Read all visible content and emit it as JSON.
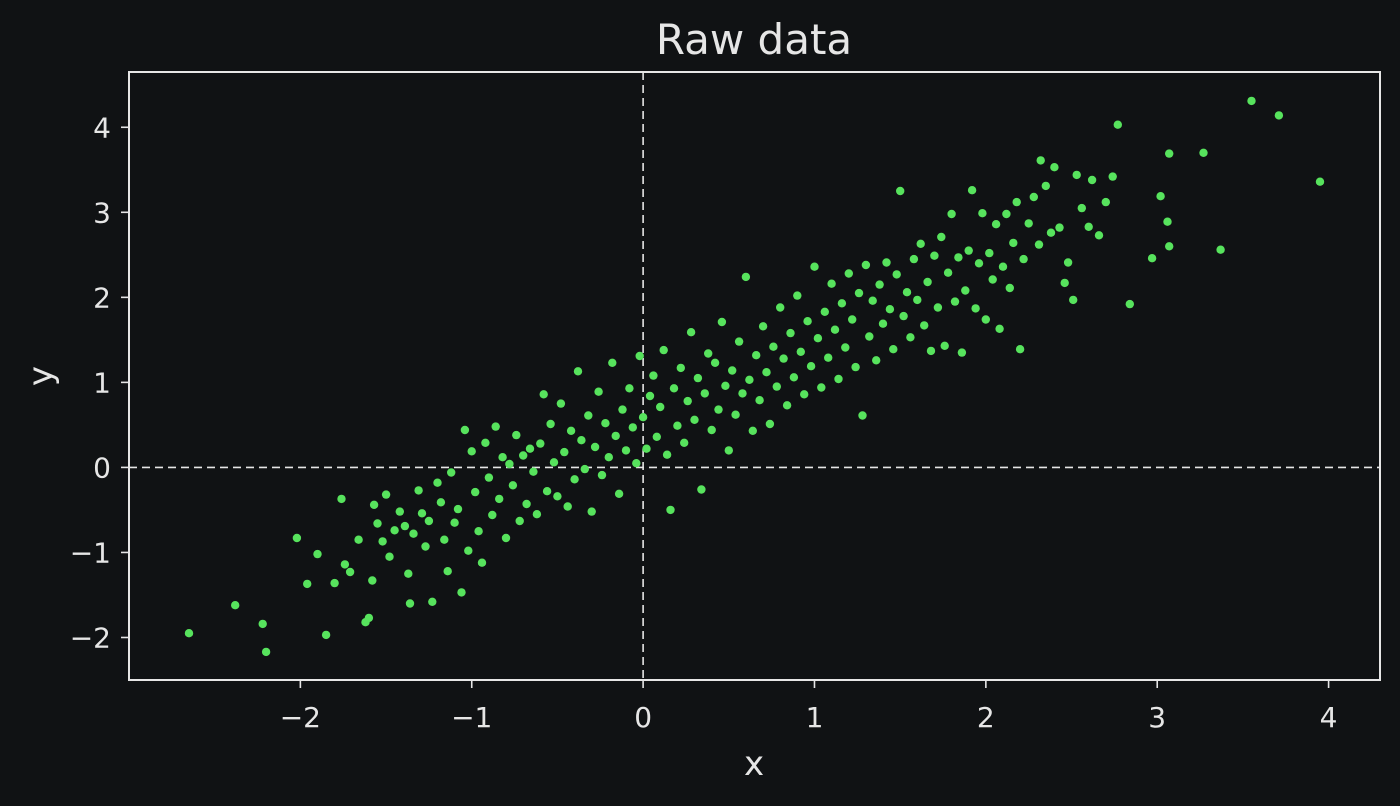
{
  "chart_data": {
    "type": "scatter",
    "title": "Raw data",
    "xlabel": "x",
    "ylabel": "y",
    "xlim": [
      -3.0,
      4.3
    ],
    "ylim": [
      -2.5,
      4.65
    ],
    "xticks": [
      -2,
      -1,
      0,
      1,
      2,
      3,
      4
    ],
    "yticks": [
      -2,
      -1,
      0,
      1,
      2,
      3,
      4
    ],
    "xtick_labels": [
      "−2",
      "−1",
      "0",
      "1",
      "2",
      "3",
      "4"
    ],
    "ytick_labels": [
      "−2",
      "−1",
      "0",
      "1",
      "2",
      "3",
      "4"
    ],
    "reference_lines": {
      "x": 0,
      "y": 0,
      "style": "dashed"
    },
    "grid": false,
    "point_color": "#57e35d",
    "background": "#101214",
    "foreground": "#e6e6e6",
    "points": [
      [
        -2.65,
        -1.95
      ],
      [
        -2.38,
        -1.62
      ],
      [
        -2.22,
        -1.84
      ],
      [
        -2.2,
        -2.17
      ],
      [
        -2.02,
        -0.83
      ],
      [
        -1.96,
        -1.37
      ],
      [
        -1.9,
        -1.02
      ],
      [
        -1.85,
        -1.97
      ],
      [
        -1.8,
        -1.36
      ],
      [
        -1.76,
        -0.37
      ],
      [
        -1.74,
        -1.14
      ],
      [
        -1.71,
        -1.23
      ],
      [
        -1.66,
        -0.85
      ],
      [
        -1.62,
        -1.82
      ],
      [
        -1.6,
        -1.77
      ],
      [
        -1.58,
        -1.33
      ],
      [
        -1.57,
        -0.44
      ],
      [
        -1.55,
        -0.66
      ],
      [
        -1.52,
        -0.87
      ],
      [
        -1.5,
        -0.32
      ],
      [
        -1.48,
        -1.05
      ],
      [
        -1.45,
        -0.74
      ],
      [
        -1.42,
        -0.52
      ],
      [
        -1.39,
        -0.69
      ],
      [
        -1.37,
        -1.25
      ],
      [
        -1.36,
        -1.6
      ],
      [
        -1.34,
        -0.78
      ],
      [
        -1.31,
        -0.27
      ],
      [
        -1.29,
        -0.54
      ],
      [
        -1.27,
        -0.93
      ],
      [
        -1.25,
        -0.63
      ],
      [
        -1.23,
        -1.58
      ],
      [
        -1.2,
        -0.18
      ],
      [
        -1.18,
        -0.41
      ],
      [
        -1.16,
        -0.85
      ],
      [
        -1.14,
        -1.22
      ],
      [
        -1.12,
        -0.06
      ],
      [
        -1.1,
        -0.65
      ],
      [
        -1.08,
        -0.49
      ],
      [
        -1.06,
        -1.47
      ],
      [
        -1.04,
        0.44
      ],
      [
        -1.02,
        -0.98
      ],
      [
        -1.0,
        0.19
      ],
      [
        -0.98,
        -0.29
      ],
      [
        -0.96,
        -0.75
      ],
      [
        -0.94,
        -1.12
      ],
      [
        -0.92,
        0.29
      ],
      [
        -0.9,
        -0.12
      ],
      [
        -0.88,
        -0.56
      ],
      [
        -0.86,
        0.48
      ],
      [
        -0.84,
        -0.37
      ],
      [
        -0.82,
        0.12
      ],
      [
        -0.8,
        -0.83
      ],
      [
        -0.78,
        0.04
      ],
      [
        -0.76,
        -0.21
      ],
      [
        -0.74,
        0.38
      ],
      [
        -0.72,
        -0.63
      ],
      [
        -0.7,
        0.14
      ],
      [
        -0.68,
        -0.43
      ],
      [
        -0.66,
        0.22
      ],
      [
        -0.64,
        -0.05
      ],
      [
        -0.62,
        -0.55
      ],
      [
        -0.6,
        0.28
      ],
      [
        -0.58,
        0.86
      ],
      [
        -0.56,
        -0.28
      ],
      [
        -0.54,
        0.51
      ],
      [
        -0.52,
        0.06
      ],
      [
        -0.5,
        -0.34
      ],
      [
        -0.48,
        0.75
      ],
      [
        -0.46,
        0.18
      ],
      [
        -0.44,
        -0.46
      ],
      [
        -0.42,
        0.43
      ],
      [
        -0.4,
        -0.14
      ],
      [
        -0.38,
        1.13
      ],
      [
        -0.36,
        0.32
      ],
      [
        -0.34,
        -0.02
      ],
      [
        -0.32,
        0.61
      ],
      [
        -0.3,
        -0.52
      ],
      [
        -0.28,
        0.24
      ],
      [
        -0.26,
        0.89
      ],
      [
        -0.24,
        -0.09
      ],
      [
        -0.22,
        0.52
      ],
      [
        -0.2,
        0.12
      ],
      [
        -0.18,
        1.23
      ],
      [
        -0.16,
        0.37
      ],
      [
        -0.14,
        -0.31
      ],
      [
        -0.12,
        0.68
      ],
      [
        -0.1,
        0.2
      ],
      [
        -0.08,
        0.93
      ],
      [
        -0.06,
        0.47
      ],
      [
        -0.04,
        0.05
      ],
      [
        -0.02,
        1.31
      ],
      [
        0.0,
        0.59
      ],
      [
        0.02,
        0.22
      ],
      [
        0.04,
        0.84
      ],
      [
        0.06,
        1.08
      ],
      [
        0.08,
        0.36
      ],
      [
        0.1,
        0.71
      ],
      [
        0.12,
        1.38
      ],
      [
        0.14,
        0.15
      ],
      [
        0.16,
        -0.5
      ],
      [
        0.18,
        0.93
      ],
      [
        0.2,
        0.49
      ],
      [
        0.22,
        1.17
      ],
      [
        0.24,
        0.29
      ],
      [
        0.26,
        0.78
      ],
      [
        0.28,
        1.59
      ],
      [
        0.3,
        0.56
      ],
      [
        0.32,
        1.05
      ],
      [
        0.34,
        -0.26
      ],
      [
        0.36,
        0.87
      ],
      [
        0.38,
        1.34
      ],
      [
        0.4,
        0.44
      ],
      [
        0.42,
        1.23
      ],
      [
        0.44,
        0.68
      ],
      [
        0.46,
        1.71
      ],
      [
        0.48,
        0.96
      ],
      [
        0.5,
        0.2
      ],
      [
        0.52,
        1.14
      ],
      [
        0.54,
        0.62
      ],
      [
        0.56,
        1.48
      ],
      [
        0.58,
        0.87
      ],
      [
        0.6,
        2.24
      ],
      [
        0.62,
        1.03
      ],
      [
        0.64,
        0.43
      ],
      [
        0.66,
        1.32
      ],
      [
        0.68,
        0.79
      ],
      [
        0.7,
        1.66
      ],
      [
        0.72,
        1.12
      ],
      [
        0.74,
        0.51
      ],
      [
        0.76,
        1.42
      ],
      [
        0.78,
        0.95
      ],
      [
        0.8,
        1.88
      ],
      [
        0.82,
        1.28
      ],
      [
        0.84,
        0.73
      ],
      [
        0.86,
        1.58
      ],
      [
        0.88,
        1.06
      ],
      [
        0.9,
        2.02
      ],
      [
        0.92,
        1.36
      ],
      [
        0.94,
        0.86
      ],
      [
        0.96,
        1.72
      ],
      [
        0.98,
        1.19
      ],
      [
        1.0,
        2.36
      ],
      [
        1.02,
        1.52
      ],
      [
        1.04,
        0.94
      ],
      [
        1.06,
        1.83
      ],
      [
        1.08,
        1.29
      ],
      [
        1.1,
        2.16
      ],
      [
        1.12,
        1.62
      ],
      [
        1.14,
        1.04
      ],
      [
        1.16,
        1.93
      ],
      [
        1.18,
        1.41
      ],
      [
        1.2,
        2.28
      ],
      [
        1.22,
        1.74
      ],
      [
        1.24,
        1.18
      ],
      [
        1.26,
        2.05
      ],
      [
        1.28,
        0.61
      ],
      [
        1.3,
        2.38
      ],
      [
        1.32,
        1.54
      ],
      [
        1.34,
        1.96
      ],
      [
        1.36,
        1.26
      ],
      [
        1.38,
        2.15
      ],
      [
        1.4,
        1.69
      ],
      [
        1.42,
        2.41
      ],
      [
        1.44,
        1.86
      ],
      [
        1.46,
        1.39
      ],
      [
        1.48,
        2.27
      ],
      [
        1.5,
        3.25
      ],
      [
        1.52,
        1.78
      ],
      [
        1.54,
        2.06
      ],
      [
        1.56,
        1.53
      ],
      [
        1.58,
        2.45
      ],
      [
        1.6,
        1.97
      ],
      [
        1.62,
        2.63
      ],
      [
        1.64,
        1.67
      ],
      [
        1.66,
        2.18
      ],
      [
        1.68,
        1.37
      ],
      [
        1.7,
        2.49
      ],
      [
        1.72,
        1.88
      ],
      [
        1.74,
        2.71
      ],
      [
        1.76,
        1.43
      ],
      [
        1.78,
        2.29
      ],
      [
        1.8,
        2.98
      ],
      [
        1.82,
        1.95
      ],
      [
        1.84,
        2.47
      ],
      [
        1.86,
        1.35
      ],
      [
        1.88,
        2.08
      ],
      [
        1.9,
        2.55
      ],
      [
        1.92,
        3.26
      ],
      [
        1.94,
        1.87
      ],
      [
        1.96,
        2.4
      ],
      [
        1.98,
        2.99
      ],
      [
        2.0,
        1.74
      ],
      [
        2.02,
        2.52
      ],
      [
        2.04,
        2.21
      ],
      [
        2.06,
        2.86
      ],
      [
        2.08,
        1.63
      ],
      [
        2.1,
        2.36
      ],
      [
        2.12,
        2.98
      ],
      [
        2.14,
        2.11
      ],
      [
        2.16,
        2.64
      ],
      [
        2.18,
        3.12
      ],
      [
        2.2,
        1.39
      ],
      [
        2.22,
        2.45
      ],
      [
        2.25,
        2.87
      ],
      [
        2.28,
        3.18
      ],
      [
        2.31,
        2.62
      ],
      [
        2.32,
        3.61
      ],
      [
        2.35,
        3.31
      ],
      [
        2.38,
        2.76
      ],
      [
        2.4,
        3.53
      ],
      [
        2.43,
        2.82
      ],
      [
        2.46,
        2.17
      ],
      [
        2.48,
        2.41
      ],
      [
        2.51,
        1.97
      ],
      [
        2.53,
        3.44
      ],
      [
        2.56,
        3.05
      ],
      [
        2.6,
        2.83
      ],
      [
        2.62,
        3.38
      ],
      [
        2.66,
        2.73
      ],
      [
        2.7,
        3.12
      ],
      [
        2.74,
        3.42
      ],
      [
        2.77,
        4.03
      ],
      [
        2.84,
        1.92
      ],
      [
        2.97,
        2.46
      ],
      [
        3.02,
        3.19
      ],
      [
        3.06,
        2.89
      ],
      [
        3.07,
        2.6
      ],
      [
        3.07,
        3.69
      ],
      [
        3.27,
        3.7
      ],
      [
        3.37,
        2.56
      ],
      [
        3.55,
        4.31
      ],
      [
        3.71,
        4.14
      ],
      [
        3.95,
        3.36
      ]
    ]
  }
}
